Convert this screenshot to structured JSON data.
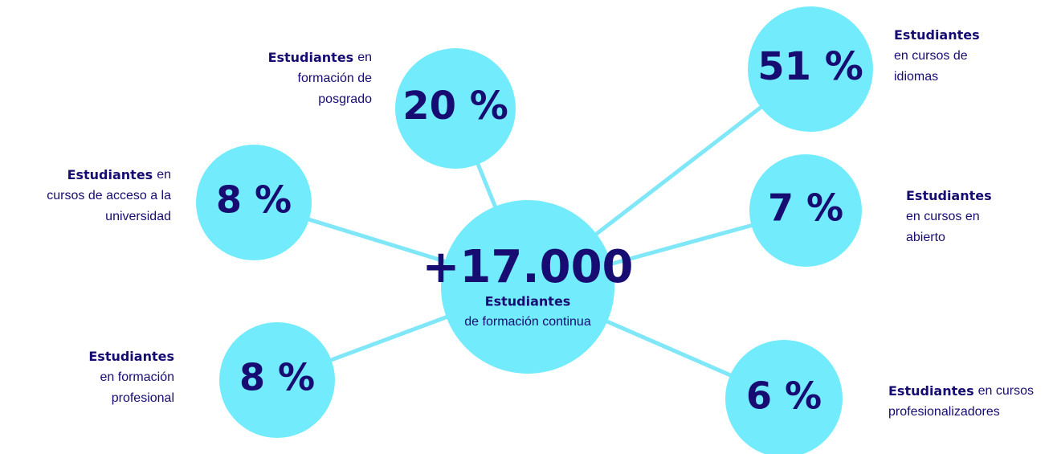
{
  "center": {
    "value": "+17.000",
    "strong": "Estudiantes",
    "text": "de formación continua"
  },
  "nodes": [
    {
      "value": "20 %",
      "strong": "Estudiantes",
      "text": [
        "en",
        "formación de",
        "posgrado"
      ]
    },
    {
      "value": "51 %",
      "strong": "Estudiantes",
      "text": [
        "en cursos de",
        "idiomas"
      ]
    },
    {
      "value": "8 %",
      "strong": "Estudiantes",
      "text": [
        "en",
        "cursos de acceso a la",
        "universidad"
      ]
    },
    {
      "value": "7 %",
      "strong": "Estudiantes",
      "text": [
        "en cursos en",
        "abierto"
      ]
    },
    {
      "value": "8 %",
      "strong": "Estudiantes",
      "text": [
        "en formación",
        "profesional"
      ]
    },
    {
      "value": "6 %",
      "strong": "Estudiantes",
      "text": [
        "en cursos",
        "profesionalizadores"
      ]
    }
  ]
}
